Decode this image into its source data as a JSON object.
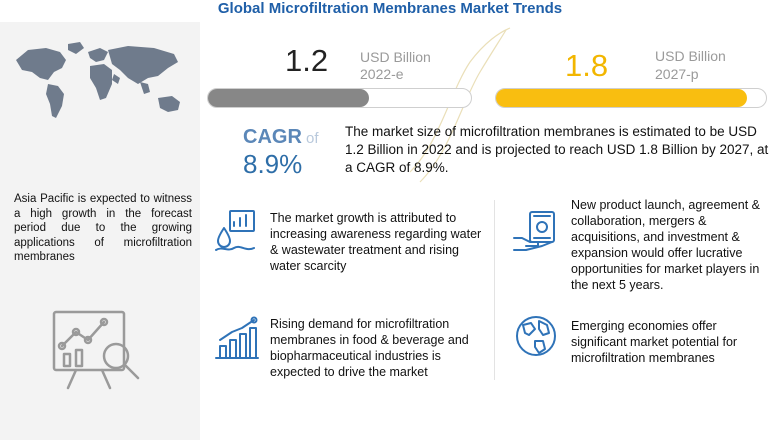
{
  "page": {
    "title": "Global Microfiltration Membranes Market Trends"
  },
  "chart_data": {
    "type": "bar",
    "title": "Global Microfiltration Membranes Market Trends",
    "unit": "USD Billion",
    "categories": [
      "2022-e",
      "2027-p"
    ],
    "values": [
      1.2,
      1.8
    ],
    "value_labels": [
      "1.2",
      "1.8"
    ],
    "max": 1.8,
    "colors": [
      "#878787",
      "#f9be10"
    ],
    "cagr": {
      "label": "CAGR",
      "of": "of",
      "value": "8.9%"
    }
  },
  "summary": "The market size of microfiltration membranes is estimated to be USD 1.2 Billion in 2022 and is projected to reach USD 1.8 Billion by 2027, at a CAGR of 8.9%.",
  "left_panel": {
    "text": "Asia Pacific is expected to witness a high growth in the forecast period due to the growing applications of microfiltration membranes",
    "map_icon": "world-map-icon",
    "analysis_icon": "chart-analysis-icon"
  },
  "cards": [
    {
      "icon": "water-chart-icon",
      "text": "The market growth is attributed to increasing awareness regarding water & wastewater treatment and rising water scarcity"
    },
    {
      "icon": "money-hand-icon",
      "text": "New product launch, agreement & collaboration, mergers & acquisitions, and investment & expansion would offer lucrative opportunities for market players in the next 5 years."
    },
    {
      "icon": "rising-bar-chart-icon",
      "text": "Rising demand for microfiltration membranes in food & beverage and biopharmaceutical industries is expected to drive the market"
    },
    {
      "icon": "globe-icon",
      "text": "Emerging economies offer significant market potential for microfiltration membranes"
    }
  ]
}
